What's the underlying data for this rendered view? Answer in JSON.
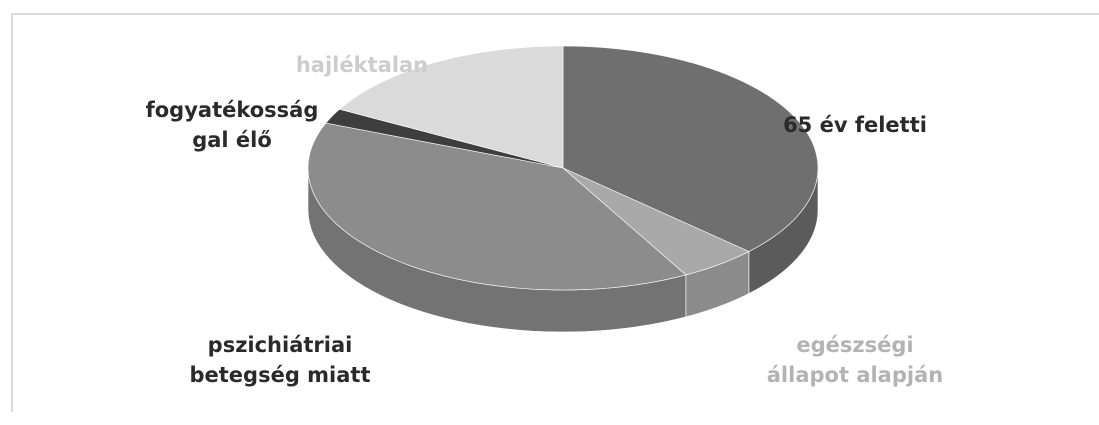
{
  "chart_data": {
    "type": "pie",
    "categories": [
      "65 év feletti",
      "egészségi\nállapot alapján",
      "pszichiátriai\nbetegség miatt",
      "fogyatékosság\ngal élő",
      "hajléktalan"
    ],
    "values": [
      37,
      5,
      39,
      2,
      17
    ],
    "colors": [
      "#6f6f6f",
      "#a9a9a9",
      "#8c8c8c",
      "#3e3e3e",
      "#dadada"
    ]
  }
}
